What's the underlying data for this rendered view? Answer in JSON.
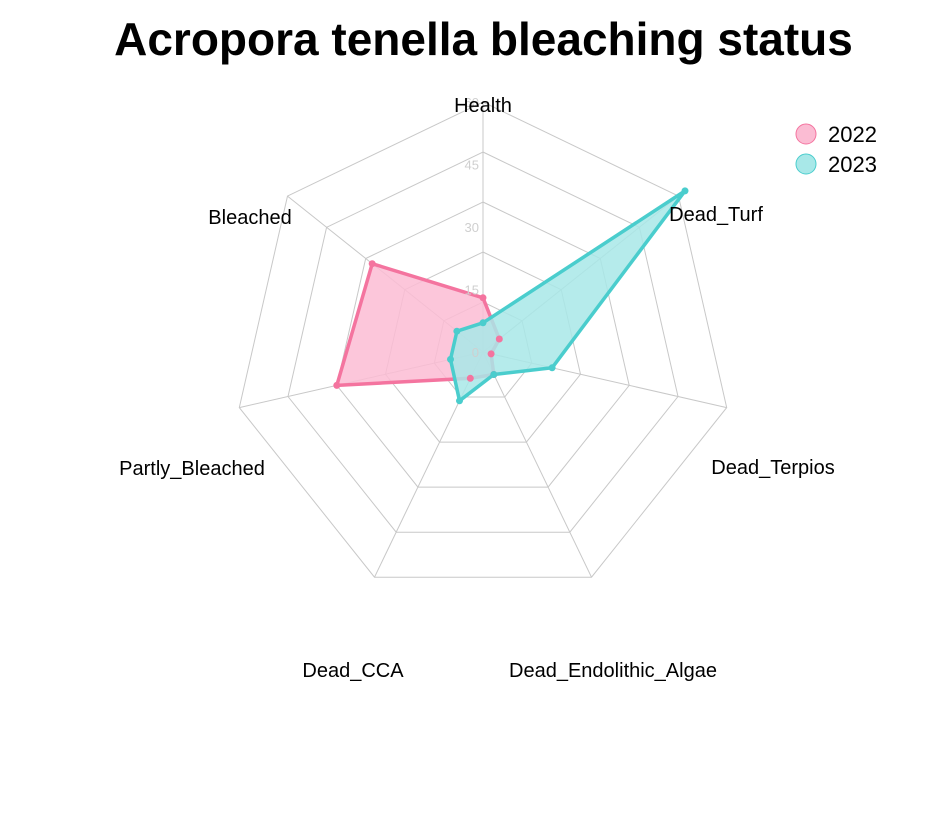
{
  "chart_data": {
    "type": "radar",
    "title": "Acropora tenella bleaching status",
    "axes": [
      "Health",
      "Dead_Turf",
      "Dead_Terpios",
      "Dead_Endolithic_Algae",
      "Dead_CCA",
      "Partly_Bleached",
      "Bleached"
    ],
    "rlim": [
      0,
      60
    ],
    "ticks": [
      "0",
      "15",
      "30",
      "45",
      "60"
    ],
    "tick_values": [
      0,
      15,
      30,
      45,
      60
    ],
    "grid": true,
    "legend_position": "top-right",
    "series": [
      {
        "name": "2022",
        "color": "#f4749f",
        "fill": "#fbbcd3",
        "values": [
          13,
          5,
          2,
          6,
          7,
          36,
          34
        ]
      },
      {
        "name": "2023",
        "color": "#4acdcd",
        "fill": "#a8e8e8",
        "values": [
          7,
          62,
          17,
          6,
          13,
          8,
          8
        ]
      }
    ]
  }
}
